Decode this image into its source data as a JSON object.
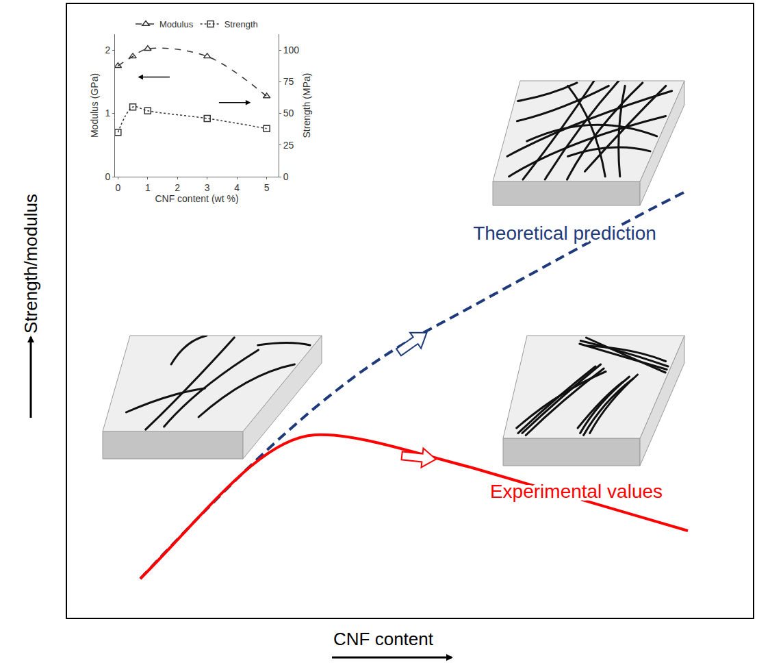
{
  "diagram": {
    "x_label": "CNF content",
    "y_label": "Strength/modulus",
    "curves": [
      {
        "label": "Theoretical prediction",
        "color": "#1f3a7a",
        "line_style": "dashed"
      },
      {
        "label": "Experimental values",
        "color": "#ff0000",
        "line_style": "solid"
      }
    ]
  },
  "chart_data": {
    "type": "line",
    "x_label": "CNF content (wt %)",
    "y_label": "Modulus (GPa)",
    "y2_label": "Strength (MPa)",
    "x": [
      0,
      0.5,
      1,
      3,
      5
    ],
    "xlim": [
      -0.1,
      5.4
    ],
    "xticks": [
      0,
      1,
      2,
      3,
      4,
      5
    ],
    "ylim": [
      0,
      2.25
    ],
    "yticks": [
      0,
      1,
      2
    ],
    "y2lim": [
      0,
      112.5
    ],
    "y2ticks": [
      0,
      25,
      50,
      75,
      100
    ],
    "legend": "top",
    "grid": false,
    "series": [
      {
        "name": "Modulus",
        "color": "#333333",
        "line_style": "dashed",
        "marker": "triangle",
        "values": [
          1.75,
          1.9,
          2.02,
          1.9,
          1.27
        ]
      },
      {
        "name": "Strength",
        "color": "#333333",
        "line_style": "dotted",
        "marker": "square",
        "axis": "y2",
        "values": [
          35,
          55,
          52,
          46,
          38
        ]
      }
    ]
  }
}
